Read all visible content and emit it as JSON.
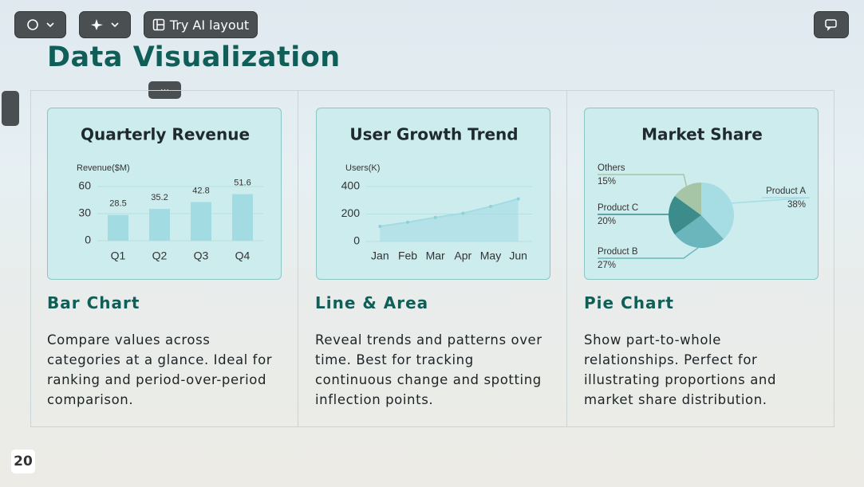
{
  "toolbar": {
    "ai_button": "Try AI layout"
  },
  "title": "Data Visualization",
  "chart_data": [
    {
      "type": "bar",
      "title": "Quarterly Revenue",
      "y_label": "Revenue($M)",
      "categories": [
        "Q1",
        "Q2",
        "Q3",
        "Q4"
      ],
      "values": [
        28.5,
        35.2,
        42.8,
        51.6
      ],
      "color": "#a3dbe3",
      "ylim": [
        0,
        60
      ],
      "yticks": [
        0,
        30,
        60
      ]
    },
    {
      "type": "line",
      "title": "User Growth Trend",
      "y_label": "Users(K)",
      "categories": [
        "Jan",
        "Feb",
        "Mar",
        "Apr",
        "May",
        "Jun"
      ],
      "values": [
        110,
        140,
        175,
        205,
        255,
        310
      ],
      "color": "#a3dbe3",
      "ylim": [
        0,
        400
      ],
      "yticks": [
        0,
        200,
        400
      ]
    },
    {
      "type": "pie",
      "title": "Market Share",
      "categories": [
        "Product A",
        "Product B",
        "Product C",
        "Others"
      ],
      "values": [
        38,
        27,
        20,
        15
      ],
      "value_labels": [
        "38%",
        "27%",
        "20%",
        "15%"
      ],
      "colors": [
        "#a6dce3",
        "#6bb6bd",
        "#3b8c8b",
        "#a6c4a6"
      ]
    }
  ],
  "cards": [
    {
      "heading": "Bar Chart",
      "description": "Compare values across categories at a glance. Ideal for ranking and period-over-period comparison."
    },
    {
      "heading": "Line & Area",
      "description": "Reveal trends and patterns over time. Best for tracking continuous change and spotting inflection points."
    },
    {
      "heading": "Pie Chart",
      "description": "Show part-to-whole relationships. Perfect for illustrating proportions and market share distribution."
    }
  ],
  "page_number": "20"
}
